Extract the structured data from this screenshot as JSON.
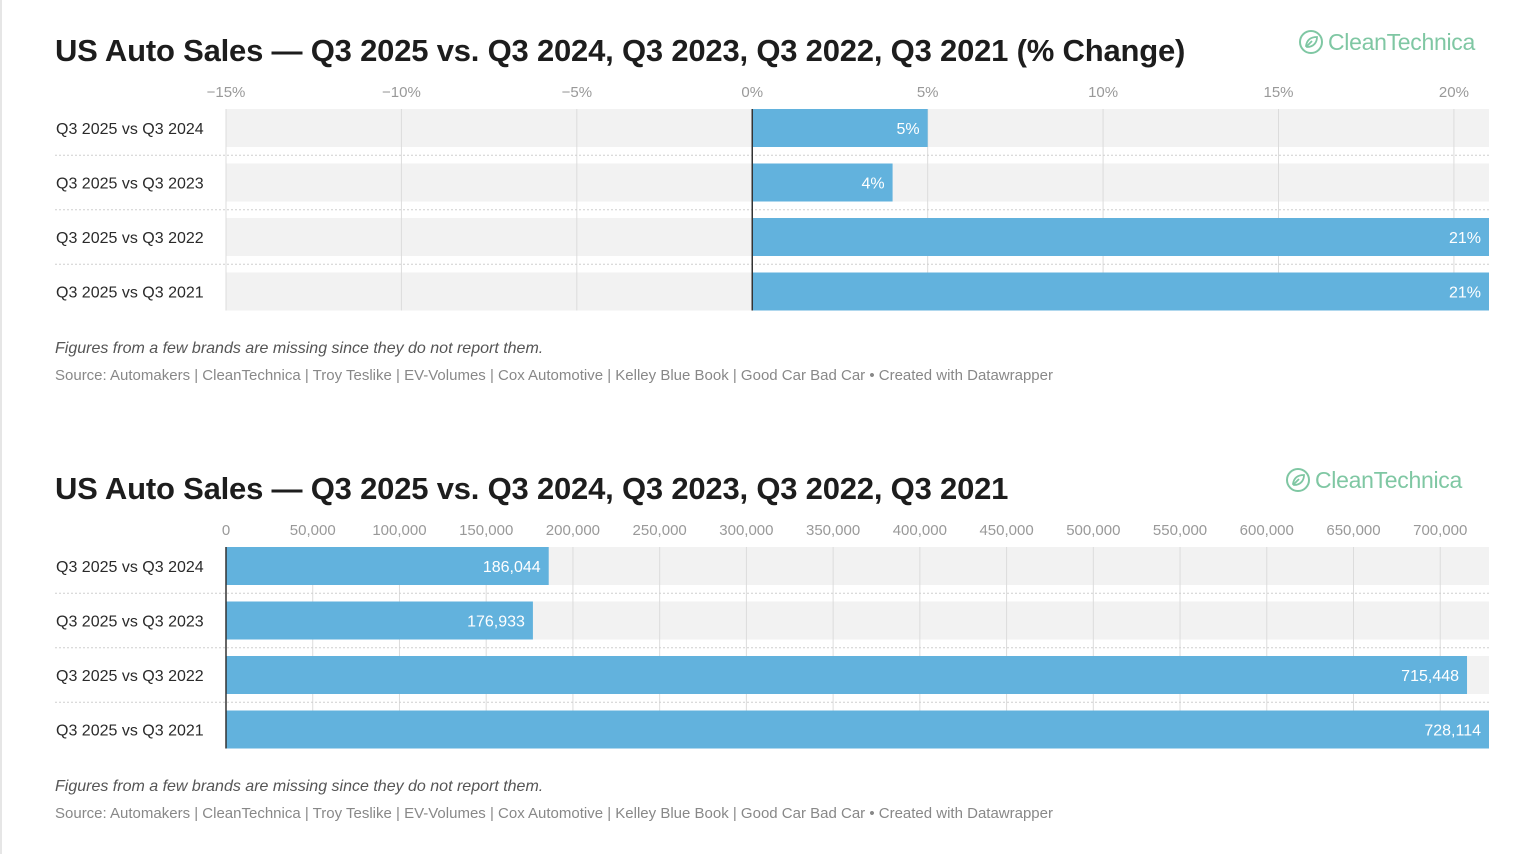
{
  "colors": {
    "bar": "#62b2dd",
    "track": "#f2f2f2",
    "grid": "#dcdcdc",
    "logo": "#7fc7a3"
  },
  "logo": {
    "text_clean": "Clean",
    "text_technica": "Technica",
    "icon": "cleantechnica-leaf-icon"
  },
  "chart_data": [
    {
      "type": "bar",
      "orientation": "horizontal",
      "title": "US Auto Sales — Q3 2025 vs. Q3 2024, Q3 2023, Q3 2022, Q3 2021 (% Change)",
      "categories": [
        "Q3 2025 vs Q3 2024",
        "Q3 2025 vs Q3 2023",
        "Q3 2025 vs Q3 2022",
        "Q3 2025 vs Q3 2021"
      ],
      "values": [
        5,
        4,
        21,
        21
      ],
      "value_labels": [
        "5%",
        "4%",
        "21%",
        "21%"
      ],
      "xlim": [
        -15,
        21
      ],
      "ticks": [
        -15,
        -10,
        -5,
        0,
        5,
        10,
        15,
        20
      ],
      "tick_labels": [
        "−15%",
        "−10%",
        "−5%",
        "0%",
        "5%",
        "10%",
        "15%",
        "20%"
      ],
      "grid": true,
      "note": "Figures from a few brands are missing since they do not report them.",
      "source": "Source: Automakers | CleanTechnica | Troy Teslike | EV-Volumes | Cox Automotive | Kelley Blue Book | Good Car Bad Car • Created with Datawrapper"
    },
    {
      "type": "bar",
      "orientation": "horizontal",
      "title": "US Auto Sales — Q3 2025 vs. Q3 2024, Q3 2023, Q3 2022, Q3 2021",
      "categories": [
        "Q3 2025 vs Q3 2024",
        "Q3 2025 vs Q3 2023",
        "Q3 2025 vs Q3 2022",
        "Q3 2025 vs Q3 2021"
      ],
      "values": [
        186044,
        176933,
        715448,
        728114
      ],
      "value_labels": [
        "186,044",
        "176,933",
        "715,448",
        "728,114"
      ],
      "xlim": [
        0,
        728114
      ],
      "ticks": [
        0,
        50000,
        100000,
        150000,
        200000,
        250000,
        300000,
        350000,
        400000,
        450000,
        500000,
        550000,
        600000,
        650000,
        700000
      ],
      "tick_labels": [
        "0",
        "50,000",
        "100,000",
        "150,000",
        "200,000",
        "250,000",
        "300,000",
        "350,000",
        "400,000",
        "450,000",
        "500,000",
        "550,000",
        "600,000",
        "650,000",
        "700,000"
      ],
      "grid": true,
      "note": "Figures from a few brands are missing since they do not report them.",
      "source": "Source: Automakers | CleanTechnica | Troy Teslike | EV-Volumes | Cox Automotive | Kelley Blue Book | Good Car Bad Car • Created with Datawrapper"
    }
  ]
}
